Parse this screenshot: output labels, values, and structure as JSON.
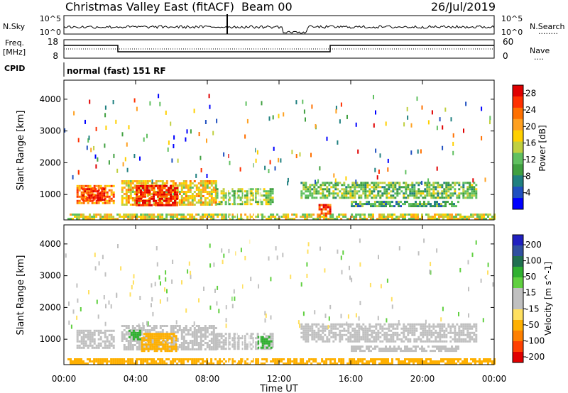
{
  "header": {
    "title": "Christmas Valley East (fitACF)",
    "beam": "Beam 00",
    "date": "26/Jul/2019"
  },
  "strip_labels": {
    "nsky": "N.Sky",
    "nsearch": "N.Search",
    "nsearch_dots": "........",
    "freq_line1": "Freq.",
    "freq_line2": "[MHz]",
    "nave": "Nave",
    "nave_dots": "....",
    "cpid": "CPID",
    "cpid_text": "normal (fast) 151 RF"
  },
  "strip_ticks": {
    "noise_left": [
      "10^5",
      "10^0"
    ],
    "noise_right": [
      "10^5",
      "10^0"
    ],
    "freq_left": [
      "18",
      "8"
    ],
    "nave_right": [
      "60",
      "0"
    ]
  },
  "colors": {
    "power_scale": [
      "#0000ff",
      "#2050c0",
      "#208080",
      "#40a040",
      "#60c060",
      "#c0d040",
      "#ffd000",
      "#ffa020",
      "#ff7000",
      "#ff3000",
      "#e00000"
    ],
    "velocity_scale": [
      "#2020c0",
      "#3050a0",
      "#207050",
      "#30b030",
      "#60d040",
      "#c0c0c0",
      "#c0c0c0",
      "#ffe060",
      "#ffb000",
      "#ff8000",
      "#ff4000",
      "#e00000"
    ]
  },
  "chart_data": [
    {
      "type": "heatmap",
      "panel": "power",
      "ylabel": "Slant Range [km]",
      "y_ticks": [
        "1000",
        "2000",
        "3000",
        "4000"
      ],
      "ylim": [
        200,
        4600
      ],
      "x_ticks": [
        "00:00",
        "04:00",
        "08:00",
        "12:00",
        "16:00",
        "20:00",
        "00:00"
      ],
      "xlim_hours": [
        0,
        24
      ],
      "colorbar_label": "Power [dB]",
      "colorbar_ticks": [
        "4",
        "8",
        "12",
        "16",
        "20",
        "24",
        "28"
      ],
      "colorbar_range": [
        0,
        30
      ],
      "regions": [
        {
          "t0": 0.7,
          "t1": 2.8,
          "r0": 700,
          "r1": 1300,
          "value": 22
        },
        {
          "t0": 1.0,
          "t1": 2.2,
          "r0": 800,
          "r1": 1200,
          "value": 28
        },
        {
          "t0": 3.2,
          "t1": 8.5,
          "r0": 650,
          "r1": 1450,
          "value": 18
        },
        {
          "t0": 4.0,
          "t1": 6.3,
          "r0": 650,
          "r1": 1300,
          "value": 27
        },
        {
          "t0": 8.5,
          "t1": 11.7,
          "r0": 700,
          "r1": 1200,
          "value": 14
        },
        {
          "t0": 13.2,
          "t1": 23.0,
          "r0": 900,
          "r1": 1400,
          "value": 12
        },
        {
          "t0": 16.0,
          "t1": 22.0,
          "r0": 600,
          "r1": 800,
          "value": 10
        },
        {
          "t0": 0.2,
          "t1": 24.0,
          "r0": 200,
          "r1": 400,
          "value": 16
        },
        {
          "t0": 14.2,
          "t1": 14.9,
          "r0": 300,
          "r1": 700,
          "value": 24
        }
      ]
    },
    {
      "type": "heatmap",
      "panel": "velocity",
      "ylabel": "Slant Range [km]",
      "y_ticks": [
        "1000",
        "2000",
        "3000",
        "4000"
      ],
      "ylim": [
        200,
        4600
      ],
      "x_ticks": [
        "00:00",
        "04:00",
        "08:00",
        "12:00",
        "16:00",
        "20:00",
        "00:00"
      ],
      "xlim_hours": [
        0,
        24
      ],
      "xlabel": "Time UT",
      "colorbar_label": "Velocity [m s^-1]",
      "colorbar_ticks": [
        "200",
        "100",
        "50",
        "15",
        "-15",
        "-50",
        "-100",
        "-200"
      ],
      "regions": [
        {
          "t0": 0.7,
          "t1": 2.8,
          "r0": 700,
          "r1": 1300,
          "value": 0
        },
        {
          "t0": 3.2,
          "t1": 8.5,
          "r0": 650,
          "r1": 1450,
          "value": 0
        },
        {
          "t0": 4.3,
          "t1": 6.3,
          "r0": 650,
          "r1": 1200,
          "value": -45
        },
        {
          "t0": 3.6,
          "t1": 4.2,
          "r0": 1000,
          "r1": 1300,
          "value": 40
        },
        {
          "t0": 8.5,
          "t1": 11.7,
          "r0": 700,
          "r1": 1200,
          "value": 0
        },
        {
          "t0": 10.8,
          "t1": 11.6,
          "r0": 750,
          "r1": 1100,
          "value": 40
        },
        {
          "t0": 13.2,
          "t1": 23.0,
          "r0": 900,
          "r1": 1500,
          "value": 0
        },
        {
          "t0": 16.0,
          "t1": 22.0,
          "r0": 600,
          "r1": 800,
          "value": 0
        },
        {
          "t0": 0.2,
          "t1": 24.0,
          "r0": 200,
          "r1": 400,
          "value": -40
        }
      ]
    }
  ]
}
